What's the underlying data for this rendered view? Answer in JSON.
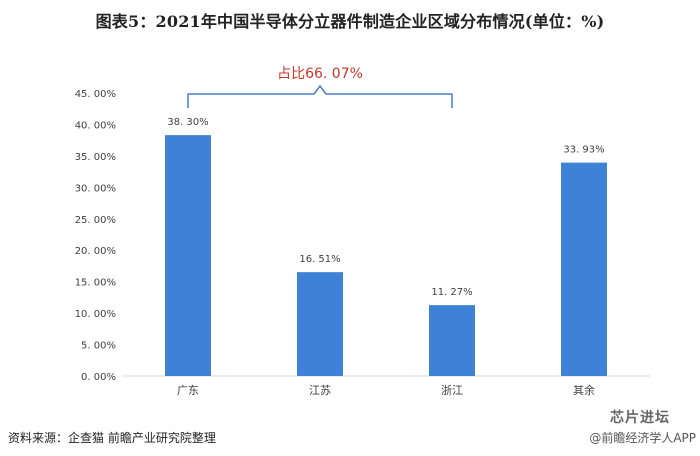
{
  "title": "图表5：2021年中国半导体分立器件制造企业区域分布情况(单位：%)",
  "annotation": "占比66. 07%",
  "footer": {
    "source": "资料来源：企查猫 前瞻产业研究院整理",
    "watermark": "@前瞻经济学人APP",
    "badge": "芯片进坛"
  },
  "colors": {
    "bar": "#3d82d6",
    "annotation": "#c0392b",
    "bracket": "#4a7fc6",
    "axis": "#d9d9d9",
    "text": "#404040"
  },
  "chart_data": {
    "type": "bar",
    "categories": [
      "广东",
      "江苏",
      "浙江",
      "其余"
    ],
    "values": [
      38.3,
      16.51,
      11.27,
      33.93
    ],
    "value_labels": [
      "38. 30%",
      "16. 51%",
      "11. 27%",
      "33. 93%"
    ],
    "ylim": [
      0,
      45
    ],
    "yticks": [
      0,
      5,
      10,
      15,
      20,
      25,
      30,
      35,
      40,
      45
    ],
    "ytick_labels": [
      "0. 00%",
      "5. 00%",
      "10. 00%",
      "15. 00%",
      "20. 00%",
      "25. 00%",
      "30. 00%",
      "35. 00%",
      "40. 00%",
      "45. 00%"
    ],
    "bracket_span": [
      "广东",
      "浙江"
    ],
    "grid": false,
    "legend": "none"
  }
}
